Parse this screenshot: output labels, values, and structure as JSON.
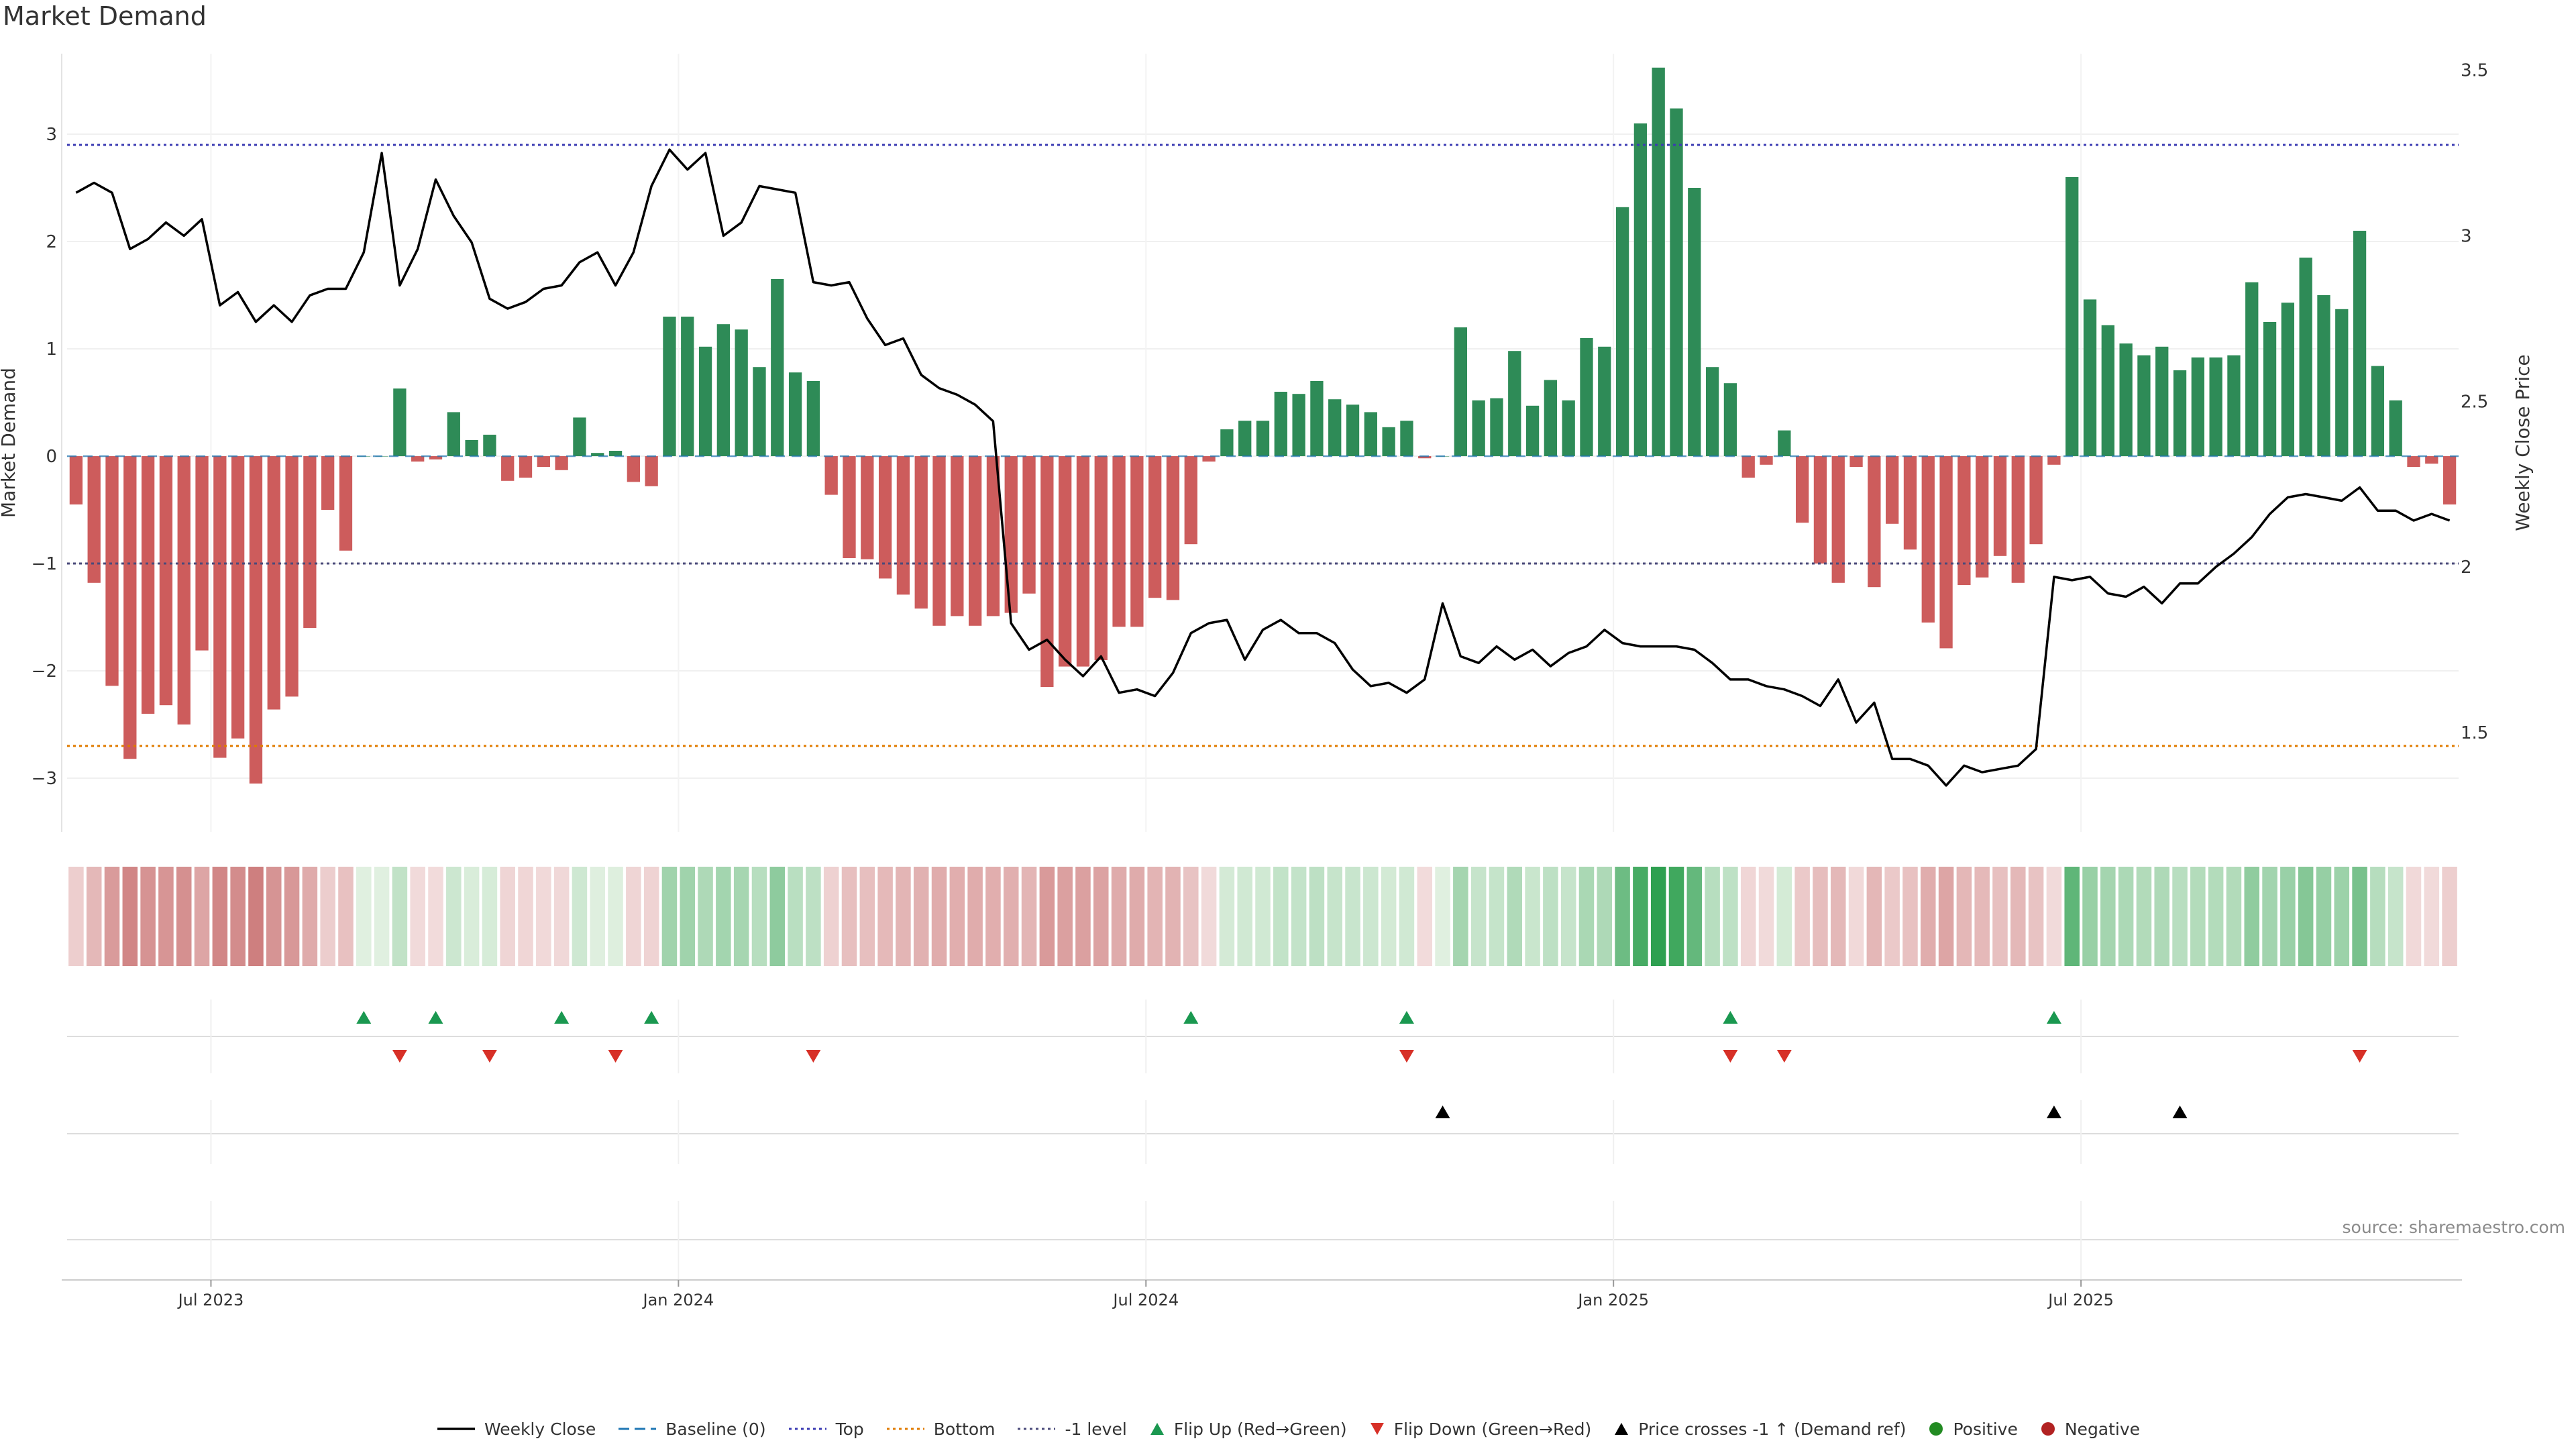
{
  "chart_data": {
    "type": "bar",
    "title": "Market Demand",
    "ylabel_left": "Market Demand",
    "ylabel_right": "Weekly Close Price",
    "ylim_left": [
      -3.5,
      3.75
    ],
    "ylim_right": [
      1.2,
      3.55
    ],
    "left_ticks": [
      3,
      2,
      1,
      0,
      -1,
      -2,
      -3
    ],
    "left_tick_labels": [
      "3",
      "2",
      "1",
      "0",
      "−1",
      "−2",
      "−3"
    ],
    "right_ticks": [
      3.5,
      3,
      2.5,
      2,
      1.5
    ],
    "right_tick_labels": [
      "3.5",
      "3",
      "2.5",
      "2",
      "1.5"
    ],
    "x_ticks": [
      {
        "index": 8,
        "label": "Jul 2023"
      },
      {
        "index": 34,
        "label": "Jan 2024"
      },
      {
        "index": 60,
        "label": "Jul 2024"
      },
      {
        "index": 86,
        "label": "Jan 2025"
      },
      {
        "index": 112,
        "label": "Jul 2025"
      }
    ],
    "reference_lines": {
      "top": 2.9,
      "bottom": -2.7,
      "minus_one": -1,
      "baseline": 0
    },
    "demand": [
      -0.45,
      -1.18,
      -2.14,
      -2.82,
      -2.4,
      -2.32,
      -2.5,
      -1.81,
      -2.81,
      -2.63,
      -3.05,
      -2.36,
      -2.24,
      -1.6,
      -0.5,
      -0.88,
      0,
      0,
      0.63,
      -0.05,
      -0.03,
      0.41,
      0.15,
      0.2,
      -0.23,
      -0.2,
      -0.1,
      -0.13,
      0.36,
      0.03,
      0.05,
      -0.24,
      -0.28,
      1.3,
      1.3,
      1.02,
      1.23,
      1.18,
      0.83,
      1.65,
      0.78,
      0.7,
      -0.36,
      -0.95,
      -0.96,
      -1.14,
      -1.29,
      -1.42,
      -1.58,
      -1.49,
      -1.58,
      -1.49,
      -1.46,
      -1.28,
      -2.15,
      -1.96,
      -1.96,
      -1.9,
      -1.59,
      -1.59,
      -1.32,
      -1.34,
      -0.82,
      -0.05,
      0.25,
      0.33,
      0.33,
      0.6,
      0.58,
      0.7,
      0.53,
      0.48,
      0.41,
      0.27,
      0.33,
      -0.02,
      0,
      1.2,
      0.52,
      0.54,
      0.98,
      0.47,
      0.71,
      0.52,
      1.1,
      1.02,
      2.32,
      3.1,
      3.62,
      3.24,
      2.5,
      0.83,
      0.68,
      -0.2,
      -0.08,
      0.24,
      -0.62,
      -1.0,
      -1.18,
      -0.1,
      -1.22,
      -0.63,
      -0.87,
      -1.55,
      -1.79,
      -1.2,
      -1.13,
      -0.93,
      -1.18,
      -0.82,
      -0.08,
      2.6,
      1.46,
      1.22,
      1.05,
      0.94,
      1.02,
      0.8,
      0.92,
      0.92,
      0.94,
      1.62,
      1.25,
      1.43,
      1.85,
      1.5,
      1.37,
      2.1,
      0.84,
      0.52,
      -0.1,
      -0.07,
      -0.45
    ],
    "close": [
      3.13,
      3.16,
      3.13,
      2.96,
      2.99,
      3.04,
      3.0,
      3.05,
      2.79,
      2.83,
      2.74,
      2.79,
      2.74,
      2.82,
      2.84,
      2.84,
      2.95,
      3.25,
      2.85,
      2.96,
      3.17,
      3.06,
      2.98,
      2.81,
      2.78,
      2.8,
      2.84,
      2.85,
      2.92,
      2.95,
      2.85,
      2.95,
      3.15,
      3.26,
      3.2,
      3.25,
      3.0,
      3.04,
      3.15,
      3.14,
      3.13,
      2.86,
      2.85,
      2.86,
      2.75,
      2.67,
      2.69,
      2.58,
      2.54,
      2.52,
      2.49,
      2.44,
      1.83,
      1.75,
      1.78,
      1.72,
      1.67,
      1.73,
      1.62,
      1.63,
      1.61,
      1.68,
      1.8,
      1.83,
      1.84,
      1.72,
      1.81,
      1.84,
      1.8,
      1.8,
      1.77,
      1.69,
      1.64,
      1.65,
      1.62,
      1.66,
      1.89,
      1.73,
      1.71,
      1.76,
      1.72,
      1.75,
      1.7,
      1.74,
      1.76,
      1.81,
      1.77,
      1.76,
      1.76,
      1.76,
      1.75,
      1.71,
      1.66,
      1.66,
      1.64,
      1.63,
      1.61,
      1.58,
      1.66,
      1.53,
      1.59,
      1.42,
      1.42,
      1.4,
      1.34,
      1.4,
      1.38,
      1.39,
      1.4,
      1.45,
      1.97,
      1.96,
      1.97,
      1.92,
      1.91,
      1.94,
      1.89,
      1.95,
      1.95,
      2.0,
      2.04,
      2.09,
      2.16,
      2.21,
      2.22,
      2.21,
      2.2,
      2.24,
      2.17,
      2.17,
      2.14,
      2.16,
      2.14
    ],
    "flips_up_idx": [
      16,
      20,
      27,
      32,
      62,
      74,
      92,
      110
    ],
    "flips_down_idx": [
      18,
      23,
      30,
      41,
      74,
      92,
      95,
      127
    ],
    "price_cross_idx": [
      76,
      110,
      117
    ],
    "legend": [
      {
        "label": "Weekly Close",
        "kind": "line",
        "color": "#000000"
      },
      {
        "label": "Baseline (0)",
        "kind": "dash",
        "color": "#1f77b4"
      },
      {
        "label": "Top",
        "kind": "dot",
        "color": "#3b3bb3"
      },
      {
        "label": "Bottom",
        "kind": "dot",
        "color": "#e07b00"
      },
      {
        "label": "-1 level",
        "kind": "dot",
        "color": "#4a4a7a"
      },
      {
        "label": "Flip Up (Red→Green)",
        "kind": "tri-up",
        "color": "#1a9850"
      },
      {
        "label": "Flip Down (Green→Red)",
        "kind": "tri-down",
        "color": "#d73027"
      },
      {
        "label": "Price crosses -1 ↑ (Demand ref)",
        "kind": "tri-up",
        "color": "#000000"
      },
      {
        "label": "Positive",
        "kind": "circle",
        "color": "#228b22"
      },
      {
        "label": "Negative",
        "kind": "circle",
        "color": "#b22222"
      }
    ],
    "colors": {
      "positive": "#2e8b57",
      "negative": "#cd5c5c",
      "top": "#3b3bb3",
      "bottom": "#e07b00",
      "minus_one": "#4a4a7a",
      "baseline": "#1f77b4",
      "close": "#000000"
    }
  },
  "source_label": "source: sharemaestro.com"
}
